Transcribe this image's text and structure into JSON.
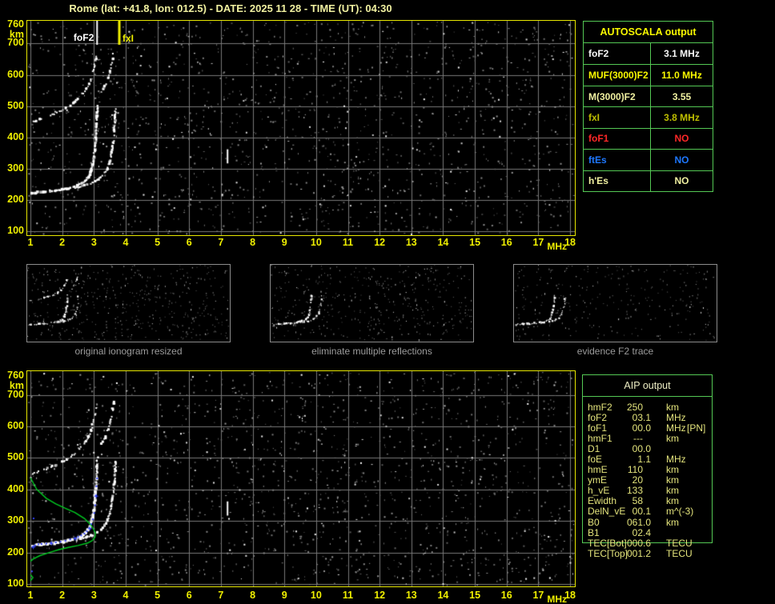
{
  "title": "Rome (lat: +41.8, lon: 012.5) - DATE: 2025 11 28 - TIME (UT): 04:30",
  "colors": {
    "background": "#000000",
    "title": "#F0F0A0",
    "axis": "#F0F000",
    "plot_border": "#E8E800",
    "grid": "#787878",
    "trace": "#FFFFFF",
    "green_profile": "#00CC22",
    "blue_points": "#3344FF",
    "table_border": "#54C854",
    "caption": "#9C9C9C",
    "aip_text": "#E4E47C",
    "aip_title": "#EDEDC4"
  },
  "top_plot": {
    "x_ticks": [
      1,
      2,
      3,
      4,
      5,
      6,
      7,
      8,
      9,
      10,
      11,
      12,
      13,
      14,
      15,
      16,
      17,
      18
    ],
    "x_unit": "MHz",
    "y_ticks": [
      760,
      700,
      600,
      500,
      400,
      300,
      200,
      100
    ],
    "y_unit": "km",
    "noise": {
      "seed": 7,
      "count": 1650
    },
    "markers": [
      {
        "label": "foF2",
        "mhz": 3.1,
        "color": "#FFFFFF"
      },
      {
        "label": "fxI",
        "mhz": 3.8,
        "color": "#F0F000"
      }
    ]
  },
  "bottom_plot": {
    "x_ticks": [
      1,
      2,
      3,
      4,
      5,
      6,
      7,
      8,
      9,
      10,
      11,
      12,
      13,
      14,
      15,
      16,
      17,
      18
    ],
    "x_unit": "MHz",
    "y_ticks": [
      760,
      700,
      600,
      500,
      400,
      300,
      200,
      100
    ],
    "y_unit": "km",
    "noise": {
      "seed": 13,
      "count": 1650
    }
  },
  "traces": {
    "f2_ordinary": [
      [
        1.05,
        222
      ],
      [
        1.2,
        224
      ],
      [
        1.4,
        226
      ],
      [
        1.6,
        228
      ],
      [
        1.8,
        230
      ],
      [
        2.0,
        233
      ],
      [
        2.2,
        237
      ],
      [
        2.35,
        241
      ],
      [
        2.5,
        247
      ],
      [
        2.62,
        253
      ],
      [
        2.72,
        261
      ],
      [
        2.8,
        270
      ],
      [
        2.87,
        281
      ],
      [
        2.92,
        295
      ],
      [
        2.96,
        312
      ],
      [
        3.0,
        335
      ],
      [
        3.03,
        365
      ],
      [
        3.06,
        400
      ],
      [
        3.08,
        435
      ],
      [
        3.1,
        470
      ],
      [
        3.11,
        500
      ]
    ],
    "f2_extraordinary": [
      [
        2.4,
        238
      ],
      [
        2.6,
        243
      ],
      [
        2.8,
        249
      ],
      [
        2.95,
        255
      ],
      [
        3.1,
        263
      ],
      [
        3.22,
        272
      ],
      [
        3.32,
        284
      ],
      [
        3.42,
        300
      ],
      [
        3.5,
        322
      ],
      [
        3.56,
        350
      ],
      [
        3.61,
        385
      ],
      [
        3.65,
        425
      ],
      [
        3.67,
        460
      ],
      [
        3.68,
        490
      ]
    ],
    "second_hop_ordinary": [
      [
        1.08,
        450
      ],
      [
        1.3,
        458
      ],
      [
        1.55,
        467
      ],
      [
        1.8,
        477
      ],
      [
        2.05,
        490
      ],
      [
        2.25,
        503
      ],
      [
        2.45,
        518
      ],
      [
        2.6,
        533
      ],
      [
        2.72,
        549
      ],
      [
        2.83,
        568
      ],
      [
        2.92,
        590
      ],
      [
        2.99,
        615
      ],
      [
        3.04,
        640
      ],
      [
        3.08,
        662
      ]
    ],
    "second_hop_extraordinary": [
      [
        3.25,
        545
      ],
      [
        3.35,
        565
      ],
      [
        3.45,
        592
      ],
      [
        3.53,
        622
      ],
      [
        3.59,
        652
      ],
      [
        3.63,
        678
      ]
    ],
    "vertical_dash": {
      "mhz": 7.21,
      "km_from": 317,
      "km_to": 362
    },
    "profile_green": [
      [
        1.0,
        437
      ],
      [
        1.2,
        400
      ],
      [
        1.5,
        372
      ],
      [
        1.8,
        354
      ],
      [
        2.1,
        340
      ],
      [
        2.4,
        327
      ],
      [
        2.7,
        308
      ],
      [
        2.9,
        288
      ],
      [
        3.0,
        272
      ],
      [
        3.05,
        260
      ],
      [
        3.03,
        248
      ],
      [
        2.95,
        238
      ],
      [
        2.8,
        230
      ],
      [
        2.5,
        222
      ],
      [
        2.2,
        216
      ],
      [
        1.9,
        209
      ],
      [
        1.6,
        200
      ],
      [
        1.3,
        190
      ],
      [
        1.1,
        180
      ],
      [
        1.0,
        172
      ]
    ],
    "profile_e_segment": [
      [
        1.0,
        130
      ],
      [
        1.08,
        120
      ],
      [
        1.0,
        110
      ]
    ],
    "blue_scaled_points": [
      [
        1.08,
        218
      ],
      [
        1.15,
        222
      ],
      [
        1.25,
        226
      ],
      [
        1.35,
        227
      ],
      [
        1.5,
        228
      ],
      [
        1.65,
        230
      ],
      [
        1.8,
        232
      ],
      [
        1.95,
        234
      ],
      [
        2.1,
        237
      ],
      [
        2.25,
        241
      ],
      [
        2.4,
        245
      ],
      [
        2.5,
        249
      ],
      [
        2.6,
        254
      ],
      [
        2.7,
        260
      ],
      [
        2.78,
        267
      ],
      [
        2.86,
        277
      ],
      [
        2.92,
        290
      ],
      [
        2.97,
        305
      ],
      [
        3.01,
        325
      ],
      [
        3.04,
        350
      ],
      [
        3.06,
        380
      ],
      [
        3.08,
        410
      ],
      [
        3.1,
        435
      ],
      [
        1.1,
        308
      ],
      [
        1.05,
        140
      ]
    ]
  },
  "thumbnails": [
    {
      "caption": "original ionogram resized",
      "seed": 21,
      "noise_count": 470,
      "show_second_hop": true
    },
    {
      "caption": "eliminate multiple reflections",
      "seed": 22,
      "noise_count": 430,
      "show_second_hop": false
    },
    {
      "caption": "evidence F2 trace",
      "seed": 23,
      "noise_count": 290,
      "show_second_hop": false
    }
  ],
  "autoscala_table": {
    "title": "AUTOSCALA output",
    "title_color": "#F8F800",
    "rows": [
      {
        "label": "foF2",
        "value": "3.1 MHz",
        "color": "#F8F8F8"
      },
      {
        "label": "MUF(3000)F2",
        "value": "11.0 MHz",
        "color": "#F8F800"
      },
      {
        "label": "M(3000)F2",
        "value": "3.55",
        "color": "#F0F0A0"
      },
      {
        "label": "fxI",
        "value": "3.8 MHz",
        "color": "#BEBE00"
      },
      {
        "label": "foF1",
        "value": "NO",
        "color": "#FF2828"
      },
      {
        "label": "ftEs",
        "value": "NO",
        "color": "#1E78FF"
      },
      {
        "label": "h'Es",
        "value": "NO",
        "color": "#F0F0A0"
      }
    ]
  },
  "aip_table": {
    "title": "AIP output",
    "rows": [
      {
        "label": "hmF2",
        "value": "250",
        "unit": "km",
        "note": ""
      },
      {
        "label": "foF2",
        "value": "03.1",
        "unit": "MHz",
        "note": ""
      },
      {
        "label": "foF1",
        "value": "00.0",
        "unit": "MHz",
        "note": "[PN]"
      },
      {
        "label": "hmF1",
        "value": "---",
        "unit": "km",
        "note": ""
      },
      {
        "label": "D1",
        "value": "00.0",
        "unit": "",
        "note": ""
      },
      {
        "label": "foE",
        "value": "1.1",
        "unit": "MHz",
        "note": ""
      },
      {
        "label": "hmE",
        "value": "110",
        "unit": "km",
        "note": ""
      },
      {
        "label": "ymE",
        "value": "20",
        "unit": "km",
        "note": ""
      },
      {
        "label": "h_vE",
        "value": "133",
        "unit": "km",
        "note": ""
      },
      {
        "label": "Ewidth",
        "value": "58",
        "unit": "km",
        "note": ""
      },
      {
        "label": "DelN_vE",
        "value": "00.1",
        "unit": "m^(-3)",
        "note": ""
      },
      {
        "label": "B0",
        "value": "061.0",
        "unit": "km",
        "note": ""
      },
      {
        "label": "B1",
        "value": "02.4",
        "unit": "",
        "note": ""
      },
      {
        "label": "TEC[Bot]",
        "value": "000.6",
        "unit": "TECU",
        "note": ""
      },
      {
        "label": "TEC[Top]",
        "value": "001.2",
        "unit": "TECU",
        "note": ""
      }
    ]
  }
}
